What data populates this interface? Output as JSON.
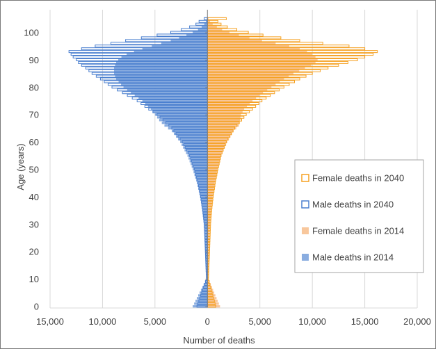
{
  "chart_data": {
    "type": "bar",
    "orientation": "horizontal-population-pyramid",
    "xlabel": "Number of deaths",
    "ylabel": "Age (years)",
    "x_ticks": [
      "15,000",
      "10,000",
      "5,000",
      "0",
      "5,000",
      "10,000",
      "15,000",
      "20,000"
    ],
    "y_ticks": [
      "0",
      "10",
      "20",
      "30",
      "40",
      "50",
      "60",
      "70",
      "80",
      "90",
      "100"
    ],
    "xlim": [
      -15000,
      20000
    ],
    "ylim": [
      0,
      106
    ],
    "grid": "vertical",
    "legend_position": "right-middle",
    "colors": {
      "female_2040": "#f5a020",
      "male_2040": "#4a7fcf",
      "female_2014": "#f8c79c",
      "male_2014": "#8aade0",
      "grid": "#d9d9d9",
      "axis": "#808080"
    },
    "series": [
      {
        "name": "Female deaths in 2040",
        "style": "outline",
        "side": "right",
        "ages": [
          0,
          10,
          20,
          30,
          35,
          40,
          45,
          50,
          55,
          60,
          65,
          70,
          72,
          75,
          78,
          80,
          83,
          85,
          87,
          88,
          89,
          90,
          91,
          92,
          93,
          94,
          95,
          96,
          97,
          98,
          99,
          100,
          101,
          102,
          103,
          104,
          105
        ],
        "values": [
          800,
          100,
          200,
          300,
          400,
          550,
          750,
          1000,
          1300,
          1800,
          2600,
          3700,
          4300,
          5200,
          6400,
          7300,
          8800,
          10000,
          11500,
          12500,
          13400,
          14300,
          15000,
          15800,
          16200,
          15000,
          13500,
          11000,
          8800,
          7000,
          5300,
          3900,
          2800,
          1900,
          1300,
          1000,
          1800
        ]
      },
      {
        "name": "Male deaths in 2040",
        "style": "outline",
        "side": "left",
        "ages": [
          0,
          10,
          20,
          30,
          35,
          40,
          45,
          50,
          55,
          60,
          65,
          70,
          72,
          75,
          78,
          80,
          83,
          85,
          87,
          88,
          89,
          90,
          91,
          92,
          93,
          94,
          95,
          96,
          97,
          98,
          99,
          100,
          101,
          102,
          103,
          104,
          105
        ],
        "values": [
          1000,
          100,
          200,
          300,
          450,
          650,
          900,
          1250,
          1700,
          2400,
          3400,
          4800,
          5600,
          6700,
          8100,
          9100,
          10200,
          11000,
          11600,
          12000,
          12300,
          12500,
          12800,
          13000,
          13200,
          12000,
          10700,
          9200,
          7800,
          6300,
          4800,
          3500,
          2500,
          1700,
          1100,
          800,
          300
        ]
      },
      {
        "name": "Female deaths in 2014",
        "style": "filled",
        "side": "right",
        "ages": [
          0,
          10,
          20,
          30,
          35,
          40,
          45,
          50,
          55,
          60,
          64,
          66,
          68,
          70,
          72,
          75,
          78,
          80,
          83,
          85,
          87,
          88,
          89,
          90,
          91,
          92,
          93,
          94,
          95,
          96,
          97,
          98,
          99,
          100,
          101,
          102,
          103,
          104,
          105
        ],
        "values": [
          1200,
          100,
          150,
          250,
          350,
          500,
          700,
          950,
          1300,
          1900,
          2500,
          3000,
          3100,
          3200,
          3500,
          4300,
          5300,
          6100,
          7300,
          8200,
          9300,
          9900,
          10300,
          10500,
          10300,
          10000,
          9500,
          8800,
          7800,
          6500,
          5200,
          4000,
          3000,
          2100,
          1400,
          900,
          500,
          250,
          100
        ]
      },
      {
        "name": "Male deaths in 2014",
        "style": "filled",
        "side": "left",
        "ages": [
          0,
          10,
          20,
          30,
          35,
          40,
          45,
          50,
          55,
          60,
          64,
          66,
          68,
          70,
          72,
          75,
          78,
          80,
          83,
          85,
          87,
          88,
          89,
          90,
          91,
          92,
          93,
          94,
          95,
          96,
          97,
          98,
          99,
          100,
          101,
          102,
          103,
          104,
          105
        ],
        "values": [
          1400,
          100,
          200,
          350,
          500,
          700,
          1000,
          1400,
          1900,
          2600,
          3400,
          4100,
          4600,
          5000,
          5400,
          6200,
          7300,
          8000,
          8700,
          8900,
          8900,
          8800,
          8700,
          8500,
          8200,
          7700,
          7000,
          6200,
          5300,
          4400,
          3500,
          2700,
          2000,
          1400,
          900,
          550,
          300,
          150,
          50
        ]
      }
    ]
  }
}
